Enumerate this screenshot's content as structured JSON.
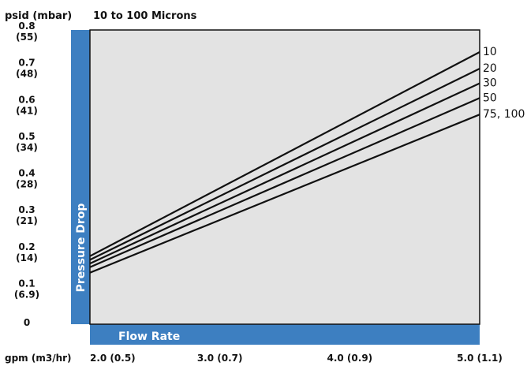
{
  "chart_data": {
    "type": "line",
    "title": "10 to 100 Microns",
    "y_unit_label": "psid (mbar)",
    "x_unit_label": "gpm (m3/hr)",
    "ylabel": "Pressure Drop",
    "xlabel": "Flow Rate",
    "xlim": [
      2.0,
      5.0
    ],
    "ylim": [
      0,
      0.8
    ],
    "grid": false,
    "legend": "right",
    "x_ticks": [
      {
        "value": 2.0,
        "label": "2.0 (0.5)"
      },
      {
        "value": 3.0,
        "label": "3.0 (0.7)"
      },
      {
        "value": 4.0,
        "label": "4.0 (0.9)"
      },
      {
        "value": 5.0,
        "label": "5.0 (1.1)"
      }
    ],
    "y_ticks": [
      {
        "value": 0,
        "label": "0",
        "sub": ""
      },
      {
        "value": 0.1,
        "label": "0.1",
        "sub": "(6.9)"
      },
      {
        "value": 0.2,
        "label": "0.2",
        "sub": "(14)"
      },
      {
        "value": 0.3,
        "label": "0.3",
        "sub": "(21)"
      },
      {
        "value": 0.4,
        "label": "0.4",
        "sub": "(28)"
      },
      {
        "value": 0.5,
        "label": "0.5",
        "sub": "(34)"
      },
      {
        "value": 0.6,
        "label": "0.6",
        "sub": "(41)"
      },
      {
        "value": 0.7,
        "label": "0.7",
        "sub": "(48)"
      },
      {
        "value": 0.8,
        "label": "0.8",
        "sub": "(55)"
      }
    ],
    "series": [
      {
        "name": "10",
        "x": [
          2.0,
          5.0
        ],
        "y": [
          0.185,
          0.74
        ]
      },
      {
        "name": "20",
        "x": [
          2.0,
          5.0
        ],
        "y": [
          0.175,
          0.695
        ]
      },
      {
        "name": "30",
        "x": [
          2.0,
          5.0
        ],
        "y": [
          0.165,
          0.655
        ]
      },
      {
        "name": "50",
        "x": [
          2.0,
          5.0
        ],
        "y": [
          0.155,
          0.615
        ]
      },
      {
        "name": "75, 100",
        "x": [
          2.0,
          5.0
        ],
        "y": [
          0.14,
          0.57
        ]
      }
    ],
    "colors": {
      "band": "#3d7fc1",
      "plot_bg": "#e3e3e3",
      "line": "#111111",
      "frame": "#111111"
    }
  }
}
